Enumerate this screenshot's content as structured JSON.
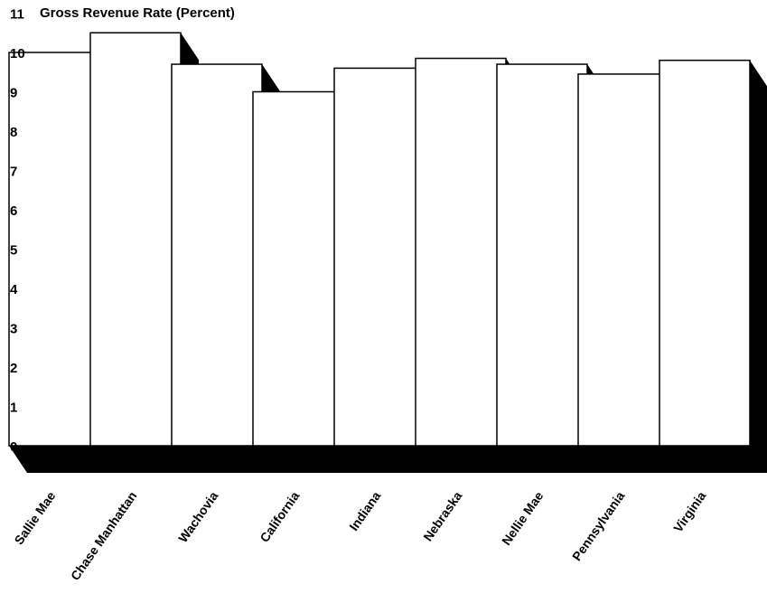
{
  "chart_data": {
    "type": "bar",
    "title": "Gross Revenue Rate (Percent)",
    "xlabel": "",
    "ylabel": "",
    "ylim": [
      0,
      11
    ],
    "yticks": [
      "0",
      "1",
      "2",
      "3",
      "4",
      "5",
      "6",
      "7",
      "8",
      "9",
      "10",
      "11"
    ],
    "grid": false,
    "legend": "none",
    "categories": [
      "Sallie Mae",
      "Chase Manhattan",
      "Wachovia",
      "California",
      "Indiana",
      "Nebraska",
      "Nellie Mae",
      "Pennsylvania",
      "Virginia"
    ],
    "values": [
      10.0,
      10.5,
      9.7,
      9.0,
      9.6,
      9.85,
      9.7,
      9.45,
      9.8
    ],
    "colors": {
      "bar_face": "#ffffff",
      "bar_shadow": "#000000"
    }
  }
}
